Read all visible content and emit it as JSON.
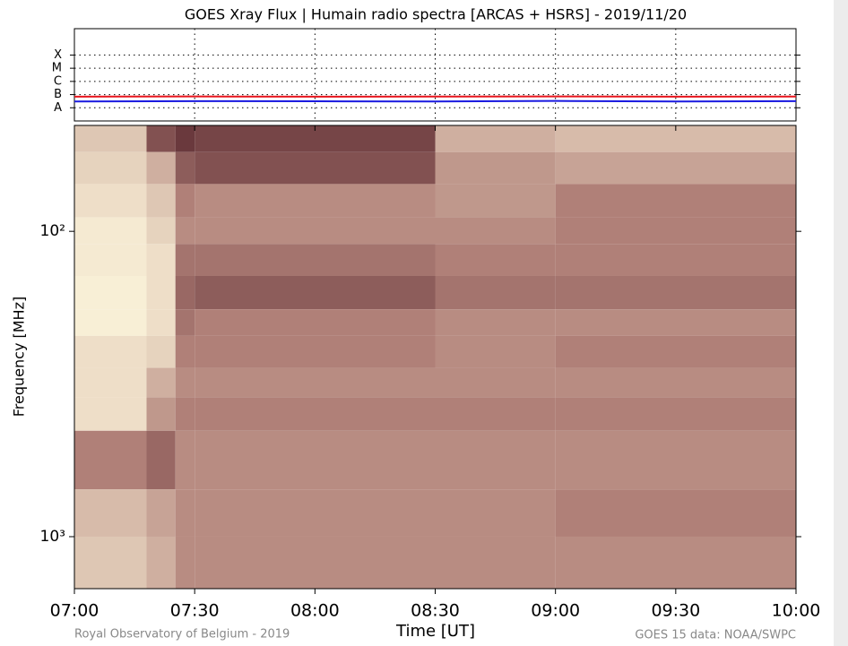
{
  "chart_data": [
    {
      "type": "line",
      "title": "GOES Xray Flux | Humain radio spectra [ARCAS + HSRS] - 2019/11/20",
      "log_y": true,
      "grid": true,
      "xlim": [
        7,
        10
      ],
      "ylim": [
        1e-09,
        0.01
      ],
      "yticks": [
        {
          "value": 1e-08,
          "label": "A"
        },
        {
          "value": 1e-07,
          "label": "B"
        },
        {
          "value": 1e-06,
          "label": "C"
        },
        {
          "value": 1e-05,
          "label": "M"
        },
        {
          "value": 0.0001,
          "label": "X"
        }
      ],
      "x": [
        7,
        7.5,
        8,
        8.5,
        9,
        9.5,
        10
      ],
      "series": [
        {
          "color": "#e8141c",
          "values": [
            7e-08,
            7.2e-08,
            7e-08,
            7.1e-08,
            7.3e-08,
            7e-08,
            7.1e-08
          ]
        },
        {
          "color": "#1a1ae0",
          "values": [
            3e-08,
            3.2e-08,
            3.1e-08,
            3e-08,
            3.3e-08,
            3e-08,
            3.2e-08
          ]
        }
      ]
    },
    {
      "type": "heatmap",
      "xlabel": "Time [UT]",
      "ylabel": "Frequency [MHz]",
      "log_y": true,
      "y_inverted": true,
      "xlim": [
        7,
        10
      ],
      "ylim": [
        45,
        1480
      ],
      "xticks": [
        {
          "value": 7,
          "label": "07:00"
        },
        {
          "value": 7.5,
          "label": "07:30"
        },
        {
          "value": 8,
          "label": "08:00"
        },
        {
          "value": 8.5,
          "label": "08:30"
        },
        {
          "value": 9,
          "label": "09:00"
        },
        {
          "value": 9.5,
          "label": "09:30"
        },
        {
          "value": 10,
          "label": "10:00"
        }
      ],
      "yticks": [
        {
          "value": 100,
          "label": "10²"
        },
        {
          "value": 1000,
          "label": "10³"
        }
      ],
      "colormap": [
        "#3c0a16",
        "#b08078",
        "#fdf6dc"
      ],
      "x_edges": [
        7,
        7.3,
        7.42,
        7.5,
        8.5,
        9,
        10
      ],
      "y_edges": [
        45,
        55,
        70,
        90,
        110,
        140,
        180,
        220,
        280,
        350,
        450,
        700,
        1000,
        1480
      ],
      "values": [
        [
          0.8,
          0.3,
          0.2,
          0.25,
          0.7,
          0.75
        ],
        [
          0.85,
          0.7,
          0.35,
          0.3,
          0.6,
          0.65
        ],
        [
          0.9,
          0.8,
          0.5,
          0.55,
          0.6,
          0.5
        ],
        [
          0.95,
          0.85,
          0.55,
          0.55,
          0.55,
          0.5
        ],
        [
          0.95,
          0.9,
          0.45,
          0.45,
          0.5,
          0.5
        ],
        [
          0.97,
          0.9,
          0.4,
          0.35,
          0.45,
          0.45
        ],
        [
          0.97,
          0.9,
          0.45,
          0.5,
          0.55,
          0.55
        ],
        [
          0.9,
          0.85,
          0.5,
          0.5,
          0.55,
          0.5
        ],
        [
          0.9,
          0.7,
          0.55,
          0.55,
          0.55,
          0.55
        ],
        [
          0.9,
          0.6,
          0.5,
          0.5,
          0.5,
          0.5
        ],
        [
          0.5,
          0.4,
          0.55,
          0.55,
          0.55,
          0.55
        ],
        [
          0.75,
          0.65,
          0.55,
          0.55,
          0.55,
          0.5
        ],
        [
          0.8,
          0.7,
          0.55,
          0.55,
          0.55,
          0.55
        ]
      ]
    }
  ],
  "footer": {
    "left": "Royal Observatory of Belgium - 2019",
    "right": "GOES 15 data: NOAA/SWPC"
  }
}
